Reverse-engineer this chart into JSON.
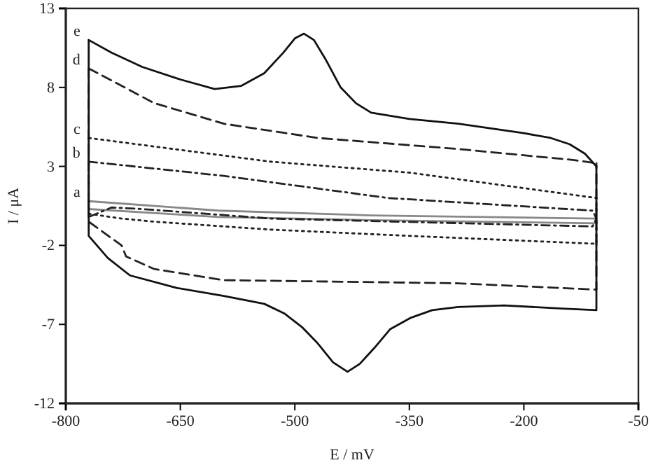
{
  "chart_data": {
    "type": "line",
    "xlabel": "E / mV",
    "ylabel": "I / μA",
    "xlim": [
      -800,
      -50
    ],
    "ylim": [
      -12,
      13
    ],
    "xticks": [
      -800,
      -650,
      -500,
      -350,
      -200,
      -50
    ],
    "yticks": [
      -12,
      -7,
      -2,
      3,
      8,
      13
    ],
    "grid": false,
    "legend": false,
    "marker": "none",
    "series": [
      {
        "name": "a",
        "color": "#888888",
        "line_style": "solid",
        "x": [
          -770,
          -600,
          -400,
          -105
        ],
        "values": [
          0.8,
          0.2,
          -0.1,
          -0.3
        ]
      },
      {
        "color": "#888888",
        "line_style": "solid",
        "x": [
          -770,
          -770,
          -600,
          -400,
          -105,
          -105
        ],
        "values": [
          0.8,
          0.3,
          -0.2,
          -0.4,
          -0.6,
          -0.3
        ]
      },
      {
        "name": "b",
        "color": "#222222",
        "line_style": "dashdot",
        "x": [
          -770,
          -593,
          -378,
          -110,
          -105
        ],
        "values": [
          3.3,
          2.4,
          1.0,
          0.2,
          -0.3
        ]
      },
      {
        "color": "#222222",
        "line_style": "dashdot",
        "x": [
          -770,
          -770,
          -740,
          -700,
          -532,
          -110,
          -105
        ],
        "values": [
          3.3,
          -0.2,
          0.4,
          0.3,
          -0.3,
          -0.8,
          -0.3
        ]
      },
      {
        "name": "c",
        "color": "#222222",
        "line_style": "dotted",
        "x": [
          -770,
          -532,
          -349,
          -105
        ],
        "values": [
          4.8,
          3.3,
          2.6,
          1.0
        ]
      },
      {
        "color": "#222222",
        "line_style": "dotted",
        "x": [
          -770,
          -770,
          -727,
          -684,
          -532,
          -349,
          -105,
          -105
        ],
        "values": [
          4.8,
          0.0,
          -0.3,
          -0.5,
          -1.0,
          -1.4,
          -1.9,
          1.0
        ]
      },
      {
        "name": "d",
        "color": "#222222",
        "line_style": "dashed",
        "x": [
          -770,
          -684,
          -593,
          -470,
          -286,
          -134,
          -105
        ],
        "values": [
          9.2,
          7.0,
          5.7,
          4.8,
          4.1,
          3.4,
          3.2
        ]
      },
      {
        "color": "#222222",
        "line_style": "dashed",
        "x": [
          -770,
          -770,
          -727,
          -721,
          -684,
          -593,
          -286,
          -105,
          -105
        ],
        "values": [
          9.2,
          -0.5,
          -2.0,
          -2.7,
          -3.5,
          -4.2,
          -4.4,
          -4.8,
          3.2
        ]
      },
      {
        "name": "e",
        "color": "#111111",
        "line_style": "solid",
        "x": [
          -770,
          -740,
          -700,
          -650,
          -605,
          -570,
          -540,
          -515,
          -500,
          -488,
          -475,
          -460,
          -440,
          -420,
          -400,
          -350,
          -286,
          -200,
          -165,
          -140,
          -120,
          -105
        ],
        "values": [
          11.0,
          10.2,
          9.3,
          8.5,
          7.9,
          8.1,
          8.9,
          10.2,
          11.1,
          11.4,
          11.0,
          9.8,
          8.0,
          7.0,
          6.4,
          6.0,
          5.7,
          5.1,
          4.8,
          4.4,
          3.8,
          3.0
        ]
      },
      {
        "color": "#111111",
        "line_style": "solid",
        "x": [
          -770,
          -770,
          -745,
          -716,
          -654,
          -593,
          -540,
          -514,
          -490,
          -470,
          -450,
          -431,
          -415,
          -396,
          -375,
          -349,
          -320,
          -286,
          -226,
          -150,
          -105,
          -105
        ],
        "values": [
          11.0,
          -1.4,
          -2.8,
          -3.9,
          -4.7,
          -5.2,
          -5.7,
          -6.3,
          -7.2,
          -8.2,
          -9.4,
          -10.0,
          -9.5,
          -8.5,
          -7.3,
          -6.6,
          -6.1,
          -5.9,
          -5.8,
          -6.0,
          -6.1,
          3.0
        ]
      }
    ]
  }
}
